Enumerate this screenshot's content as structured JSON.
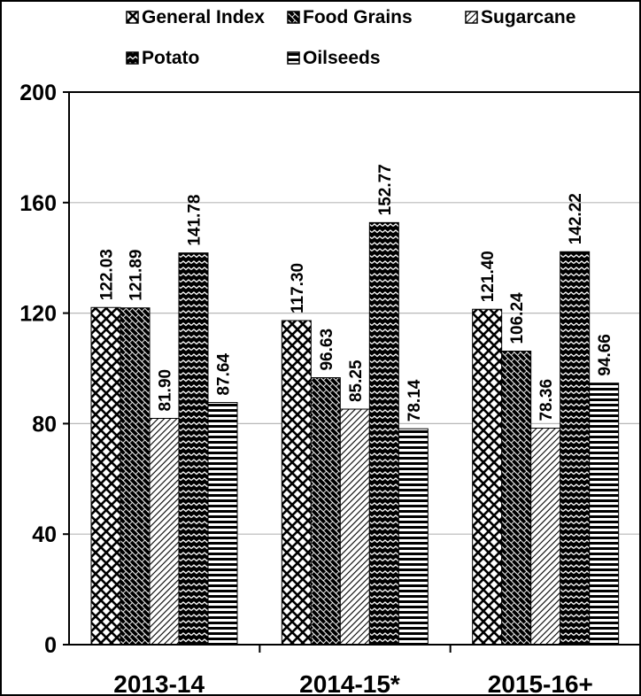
{
  "chart_data": {
    "type": "bar",
    "title": "",
    "xlabel": "",
    "ylabel": "",
    "ylim": [
      0,
      200
    ],
    "yticks": [
      0,
      40,
      80,
      120,
      160,
      200
    ],
    "grid": true,
    "legend_position": "top",
    "categories": [
      "2013-14",
      "2014-15*",
      "2015-16+"
    ],
    "series": [
      {
        "name": "General Index",
        "values": [
          122.03,
          117.3,
          121.4
        ],
        "labels": [
          "122.03",
          "117.30",
          "121.40"
        ],
        "pattern": "crosshatch"
      },
      {
        "name": "Food Grains",
        "values": [
          121.89,
          96.63,
          106.24
        ],
        "labels": [
          "121.89",
          "96.63",
          "106.24"
        ],
        "pattern": "brick"
      },
      {
        "name": "Sugarcane",
        "values": [
          81.9,
          85.25,
          78.36
        ],
        "labels": [
          "81.90",
          "85.25",
          "78.36"
        ],
        "pattern": "diagonal"
      },
      {
        "name": "Potato",
        "values": [
          141.78,
          152.77,
          142.22
        ],
        "labels": [
          "141.78",
          "152.77",
          "142.22"
        ],
        "pattern": "zigzag"
      },
      {
        "name": "Oilseeds",
        "values": [
          87.64,
          78.14,
          94.66
        ],
        "labels": [
          "87.64",
          "78.14",
          "94.66"
        ],
        "pattern": "horizontal"
      }
    ]
  }
}
